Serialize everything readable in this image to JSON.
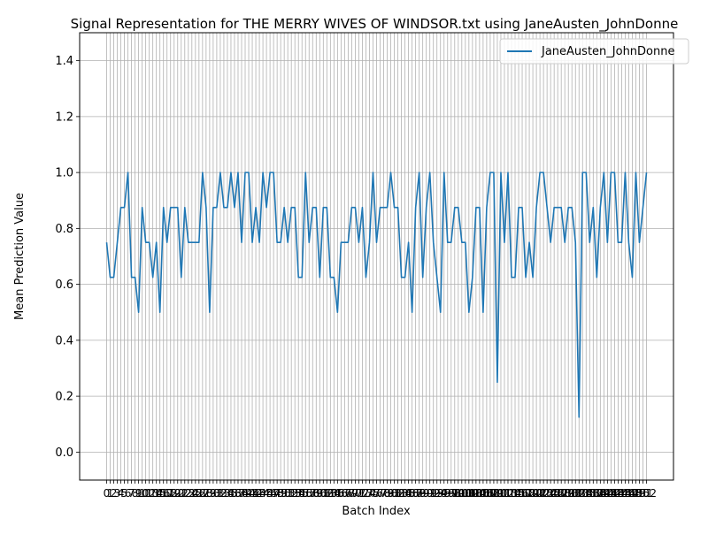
{
  "chart_data": {
    "type": "line",
    "title": "Signal Representation for THE MERRY WIVES OF WINDSOR.txt using JaneAusten_JohnDonne",
    "xlabel": "Batch Index",
    "ylabel": "Mean Prediction Value",
    "xlim": [
      -7.6,
      159.6
    ],
    "ylim": [
      -0.1,
      1.5
    ],
    "yticks": [
      0.0,
      0.2,
      0.4,
      0.6,
      0.8,
      1.0,
      1.2,
      1.4
    ],
    "ytick_labels": [
      "0.0",
      "0.2",
      "0.4",
      "0.6",
      "0.8",
      "1.0",
      "1.2",
      "1.4"
    ],
    "xticks_count": 153,
    "grid": true,
    "legend_position": "top-right",
    "series": [
      {
        "name": "JaneAusten_JohnDonne",
        "color": "#1f77b4",
        "x_start": 0,
        "values": [
          0.75,
          0.625,
          0.625,
          0.75,
          0.875,
          0.875,
          1.0,
          0.625,
          0.625,
          0.5,
          0.875,
          0.75,
          0.75,
          0.625,
          0.75,
          0.5,
          0.875,
          0.75,
          0.875,
          0.875,
          0.875,
          0.625,
          0.875,
          0.75,
          0.75,
          0.75,
          0.75,
          1.0,
          0.875,
          0.5,
          0.875,
          0.875,
          1.0,
          0.875,
          0.875,
          1.0,
          0.875,
          1.0,
          0.75,
          1.0,
          1.0,
          0.75,
          0.875,
          0.75,
          1.0,
          0.875,
          1.0,
          1.0,
          0.75,
          0.75,
          0.875,
          0.75,
          0.875,
          0.875,
          0.625,
          0.625,
          1.0,
          0.75,
          0.875,
          0.875,
          0.625,
          0.875,
          0.875,
          0.625,
          0.625,
          0.5,
          0.75,
          0.75,
          0.75,
          0.875,
          0.875,
          0.75,
          0.875,
          0.625,
          0.75,
          1.0,
          0.75,
          0.875,
          0.875,
          0.875,
          1.0,
          0.875,
          0.875,
          0.625,
          0.625,
          0.75,
          0.5,
          0.875,
          1.0,
          0.625,
          0.875,
          1.0,
          0.75,
          0.625,
          0.5,
          1.0,
          0.75,
          0.75,
          0.875,
          0.875,
          0.75,
          0.75,
          0.5,
          0.625,
          0.875,
          0.875,
          0.5,
          0.875,
          1.0,
          1.0,
          0.25,
          1.0,
          0.75,
          1.0,
          0.625,
          0.625,
          0.875,
          0.875,
          0.625,
          0.75,
          0.625,
          0.875,
          1.0,
          1.0,
          0.875,
          0.75,
          0.875,
          0.875,
          0.875,
          0.75,
          0.875,
          0.875,
          0.75,
          0.125,
          1.0,
          1.0,
          0.75,
          0.875,
          0.625,
          0.875,
          1.0,
          0.75,
          1.0,
          1.0,
          0.75,
          0.75,
          1.0,
          0.75,
          0.625,
          1.0,
          0.75,
          0.875,
          1.0
        ]
      }
    ]
  }
}
